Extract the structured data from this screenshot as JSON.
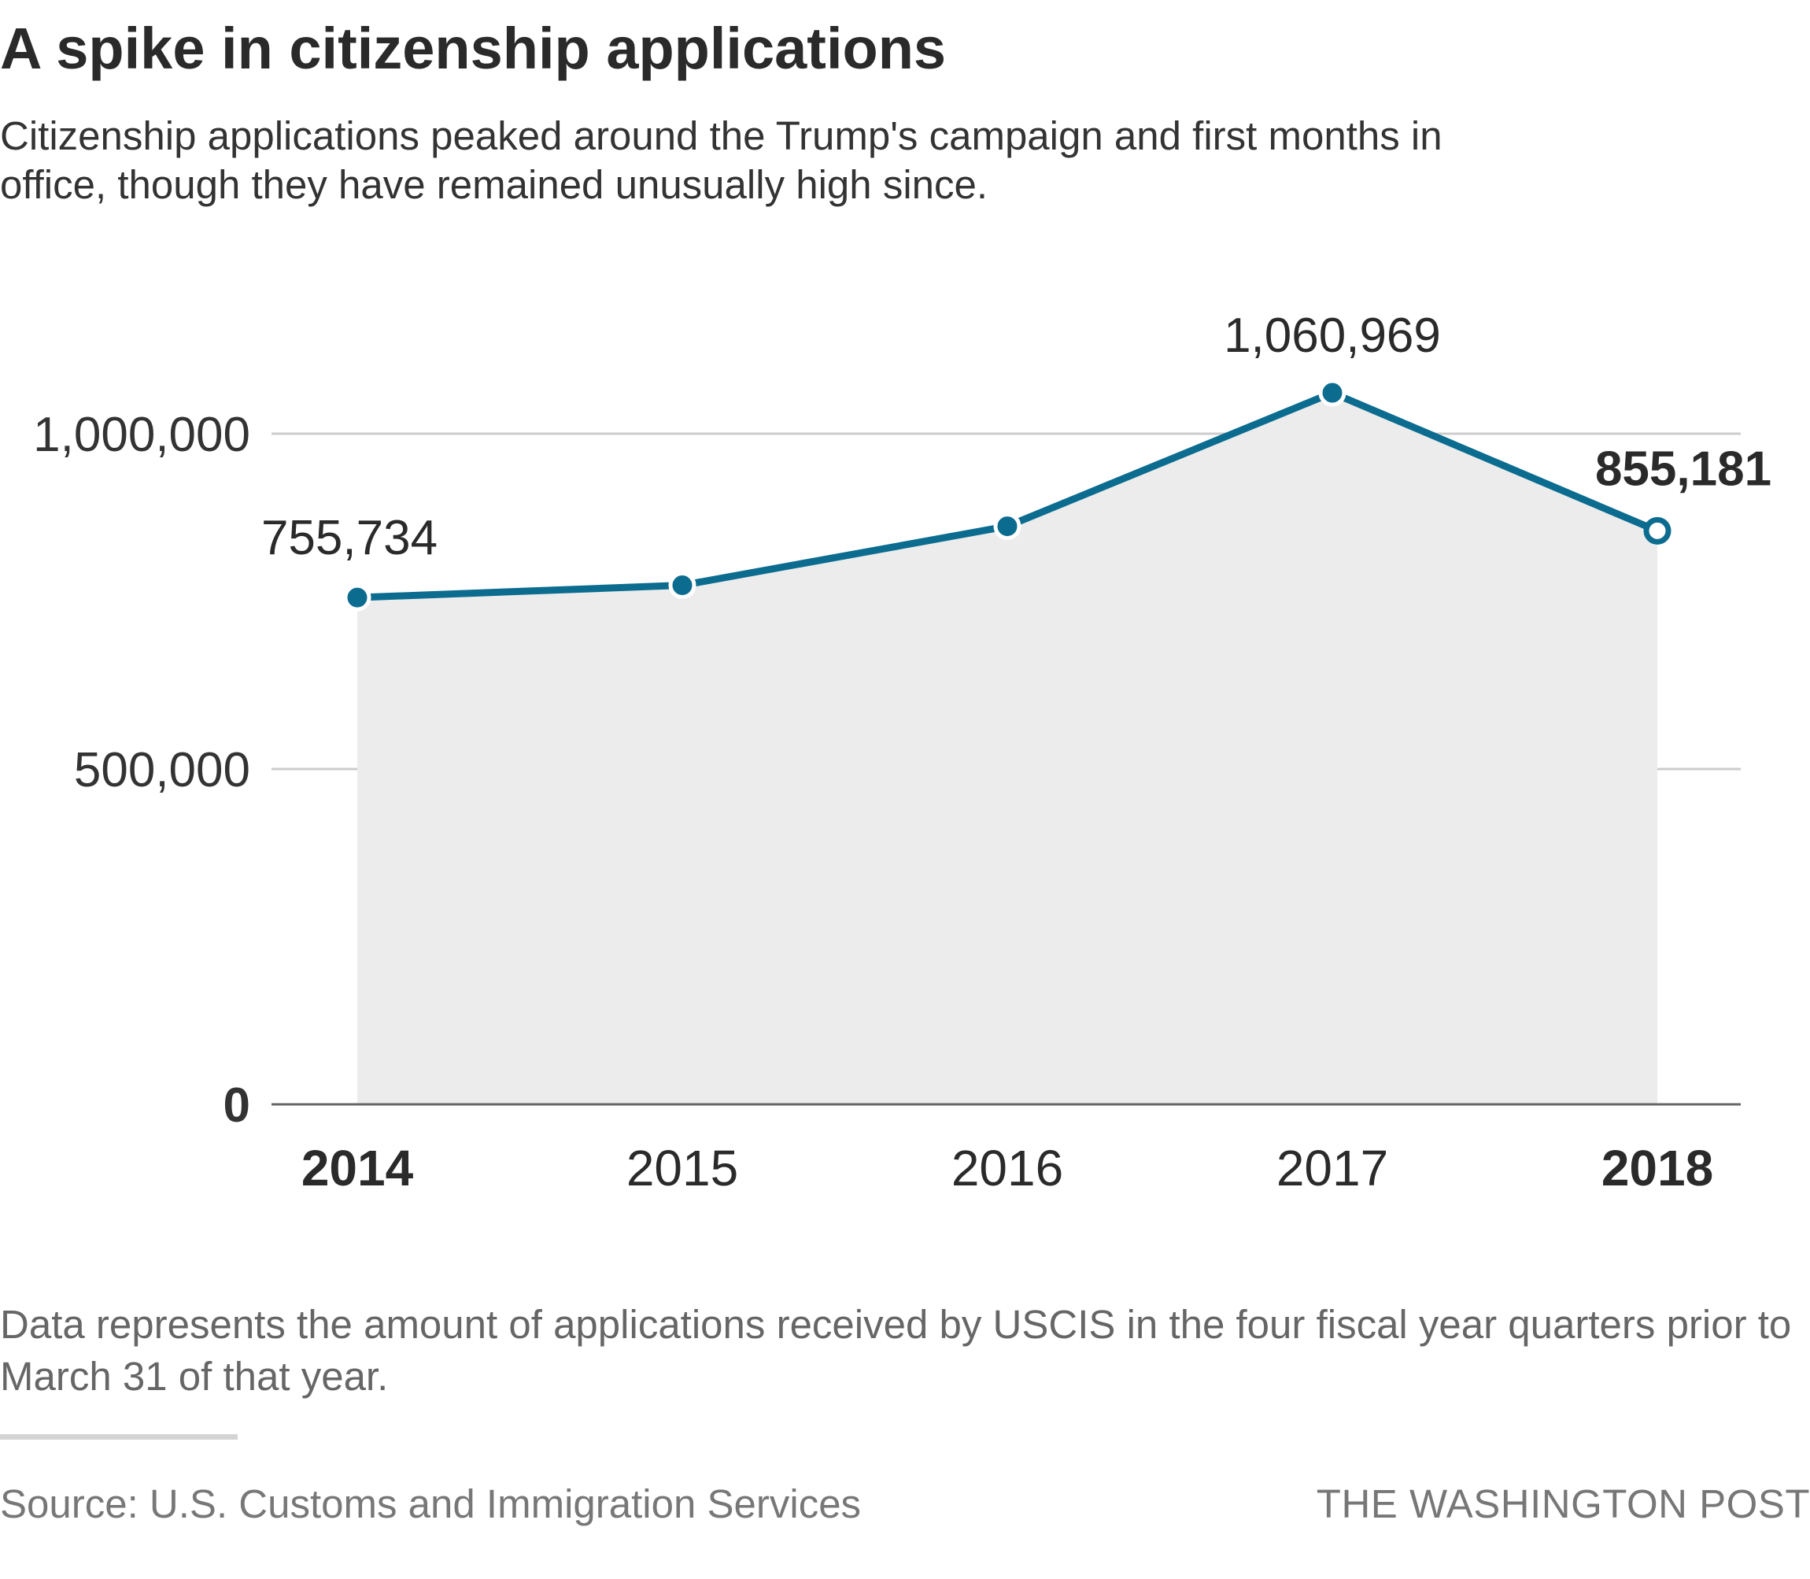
{
  "title": "A spike in citizenship applications",
  "subtitle": "Citizenship applications peaked around the Trump's campaign and first months in office, though they have remained unusually high since.",
  "note": "Data represents the amount of applications received by USCIS in the four fiscal year quarters prior to March 31 of that year.",
  "source": "Source: U.S. Customs and Immigration Services",
  "credit": "THE WASHINGTON POST",
  "colors": {
    "line": "#0b6c8f",
    "area": "#ececec",
    "grid": "#cccccc",
    "axis": "#666666"
  },
  "chart_data": {
    "type": "line",
    "x": [
      "2014",
      "2015",
      "2016",
      "2017",
      "2018"
    ],
    "x_bold": [
      "2014",
      "2018"
    ],
    "values": [
      755734,
      774000,
      862000,
      1060969,
      855181
    ],
    "data_labels": [
      {
        "index": 0,
        "text": "755,734",
        "bold": false
      },
      {
        "index": 3,
        "text": "1,060,969",
        "bold": false
      },
      {
        "index": 4,
        "text": "855,181",
        "bold": true
      }
    ],
    "hollow_last_point": true,
    "area_fill": true,
    "ylim": [
      0,
      1000000
    ],
    "yticks": [
      {
        "value": 0,
        "label": "0",
        "bold": true
      },
      {
        "value": 500000,
        "label": "500,000",
        "bold": false
      },
      {
        "value": 1000000,
        "label": "1,000,000",
        "bold": false
      }
    ],
    "grid": true,
    "legend": "none"
  }
}
